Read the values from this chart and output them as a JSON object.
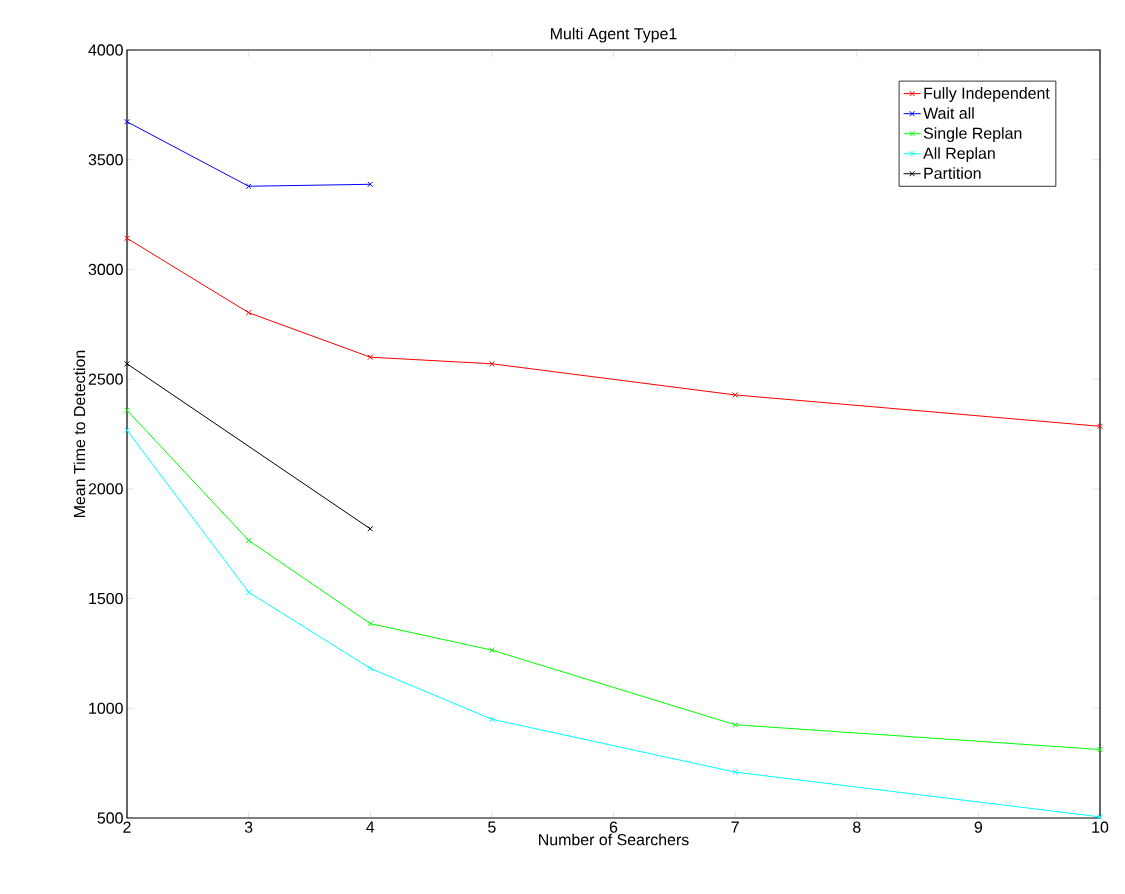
{
  "chart_data": {
    "type": "line",
    "title": "Multi Agent Type1",
    "xlabel": "Number of Searchers",
    "ylabel": "Mean Time to Detection",
    "x": [
      2,
      3,
      4,
      5,
      7,
      10
    ],
    "series": [
      {
        "name": "Fully Independent",
        "color": "#ff0000",
        "values": [
          3142,
          2803,
          2600,
          2570,
          2428,
          2285
        ]
      },
      {
        "name": "Wait all",
        "color": "#0000ff",
        "x": [
          2,
          3,
          4
        ],
        "values": [
          3673,
          3379,
          3388
        ]
      },
      {
        "name": "Single Replan",
        "color": "#00ff00",
        "values": [
          2358,
          1765,
          1386,
          1265,
          925,
          812
        ]
      },
      {
        "name": "All Replan",
        "color": "#00ffff",
        "values": [
          2267,
          1529,
          1182,
          950,
          709,
          505
        ]
      },
      {
        "name": "Partition",
        "color": "#000000",
        "x": [
          2,
          4
        ],
        "values": [
          2570,
          1818
        ]
      }
    ],
    "xlim": [
      2,
      10
    ],
    "ylim": [
      500,
      4000
    ],
    "xticks": [
      2,
      3,
      4,
      5,
      6,
      7,
      8,
      9,
      10
    ],
    "yticks": [
      500,
      1000,
      1500,
      2000,
      2500,
      3000,
      3500,
      4000
    ],
    "legend": "top right",
    "marker": "cross",
    "line_style": "solid",
    "grid": false
  }
}
